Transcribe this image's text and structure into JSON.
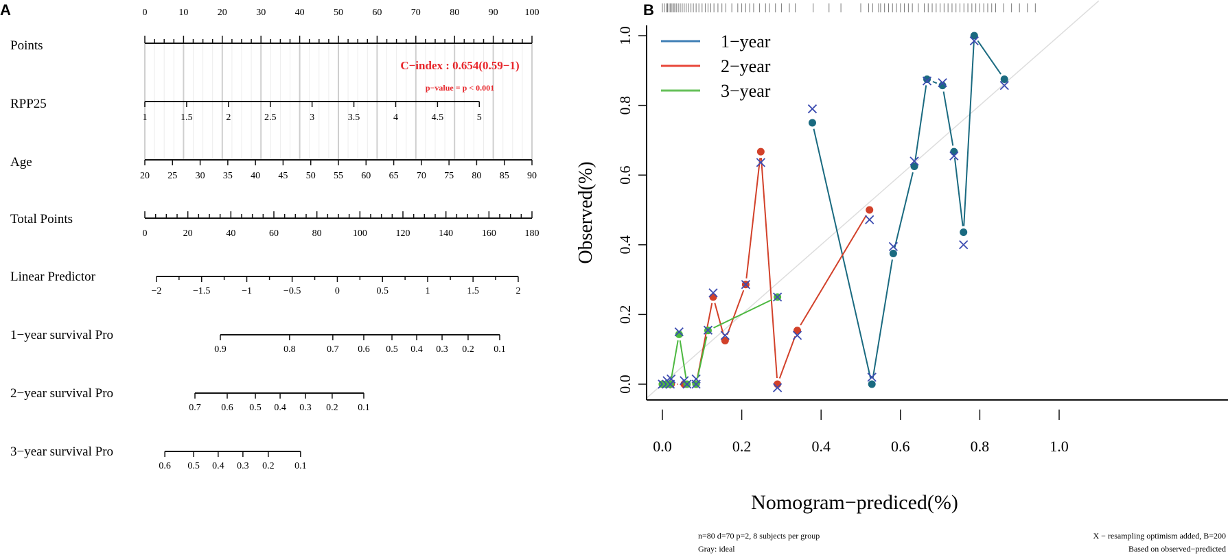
{
  "panels": {
    "a": "A",
    "b": "B"
  },
  "chart_data": [
    {
      "type": "nomogram",
      "annotation": {
        "c_index": "C−index : 0.654(0.59−1)",
        "p_value": "p−value = p < 0.001"
      },
      "colors": {
        "annotation": "#e8262b"
      },
      "points_axis": {
        "label": "Points",
        "min": 0,
        "max": 100,
        "labels": [
          "0",
          "10",
          "20",
          "30",
          "40",
          "50",
          "60",
          "70",
          "80",
          "90",
          "100"
        ]
      },
      "variables": [
        {
          "label": "RPP25",
          "ticks": [
            {
              "t": "1",
              "pts": 0
            },
            {
              "t": "1.5",
              "pts": 10.8
            },
            {
              "t": "2",
              "pts": 21.6
            },
            {
              "t": "2.5",
              "pts": 32.4
            },
            {
              "t": "3",
              "pts": 43.2
            },
            {
              "t": "3.5",
              "pts": 54
            },
            {
              "t": "4",
              "pts": 64.8
            },
            {
              "t": "4.5",
              "pts": 75.6
            },
            {
              "t": "5",
              "pts": 86.4
            }
          ]
        },
        {
          "label": "Age",
          "ticks": [
            {
              "t": "20",
              "pts": 0
            },
            {
              "t": "25",
              "pts": 7.14
            },
            {
              "t": "30",
              "pts": 14.29
            },
            {
              "t": "35",
              "pts": 21.43
            },
            {
              "t": "40",
              "pts": 28.57
            },
            {
              "t": "45",
              "pts": 35.71
            },
            {
              "t": "50",
              "pts": 42.86
            },
            {
              "t": "55",
              "pts": 50
            },
            {
              "t": "60",
              "pts": 57.14
            },
            {
              "t": "65",
              "pts": 64.29
            },
            {
              "t": "70",
              "pts": 71.43
            },
            {
              "t": "75",
              "pts": 78.57
            },
            {
              "t": "80",
              "pts": 85.71
            },
            {
              "t": "85",
              "pts": 92.86
            },
            {
              "t": "90",
              "pts": 100
            }
          ]
        }
      ],
      "total_points": {
        "label": "Total Points",
        "min": 0,
        "max": 180,
        "labels": [
          "0",
          "20",
          "40",
          "60",
          "80",
          "100",
          "120",
          "140",
          "160",
          "180"
        ]
      },
      "outcome_scales": [
        {
          "label": "Linear Predictor",
          "ticks": [
            {
              "t": "−2",
              "tp": 5.4
            },
            {
              "t": "−1.5",
              "tp": 26.4
            },
            {
              "t": "−1",
              "tp": 47.4
            },
            {
              "t": "−0.5",
              "tp": 68.5
            },
            {
              "t": "0",
              "tp": 89.5
            },
            {
              "t": "0.5",
              "tp": 110.5
            },
            {
              "t": "1",
              "tp": 131.5
            },
            {
              "t": "1.5",
              "tp": 152.6
            },
            {
              "t": "2",
              "tp": 173.6
            }
          ]
        },
        {
          "label": "1−year survival Pro",
          "ticks": [
            {
              "t": "0.9",
              "tp": 35.1
            },
            {
              "t": "0.8",
              "tp": 67.3
            },
            {
              "t": "0.7",
              "tp": 87.4
            },
            {
              "t": "0.6",
              "tp": 101.8
            },
            {
              "t": "0.5",
              "tp": 114.9
            },
            {
              "t": "0.4",
              "tp": 126.4
            },
            {
              "t": "0.3",
              "tp": 138.2
            },
            {
              "t": "0.2",
              "tp": 150.3
            },
            {
              "t": "0.1",
              "tp": 165.0
            }
          ]
        },
        {
          "label": "2−year survival Pro",
          "ticks": [
            {
              "t": "0.7",
              "tp": 23.3
            },
            {
              "t": "0.6",
              "tp": 38.3
            },
            {
              "t": "0.5",
              "tp": 51.4
            },
            {
              "t": "0.4",
              "tp": 62.9
            },
            {
              "t": "0.3",
              "tp": 74.7
            },
            {
              "t": "0.2",
              "tp": 87.1
            },
            {
              "t": "0.1",
              "tp": 101.8
            }
          ]
        },
        {
          "label": "3−year survival Pro",
          "ticks": [
            {
              "t": "0.6",
              "tp": 9.3
            },
            {
              "t": "0.5",
              "tp": 22.7
            },
            {
              "t": "0.4",
              "tp": 34.1
            },
            {
              "t": "0.3",
              "tp": 45.6
            },
            {
              "t": "0.2",
              "tp": 57.4
            },
            {
              "t": "0.1",
              "tp": 72.4
            }
          ]
        }
      ]
    },
    {
      "type": "line",
      "xlabel": "Nomogram−prediced(%)",
      "ylabel": "Observed(%)",
      "xlim": [
        0,
        1
      ],
      "ylim": [
        0,
        1
      ],
      "xticks": [
        "0.0",
        "0.2",
        "0.4",
        "0.6",
        "0.8",
        "1.0"
      ],
      "yticks": [
        "0.0",
        "0.2",
        "0.4",
        "0.6",
        "0.8",
        "1.0"
      ],
      "legend_position": "top-left",
      "footnotes": {
        "left1": "n=80 d=70 p=2, 8 subjects per group",
        "left2": "Gray: ideal",
        "right1": "X − resampling optimism added, B=200",
        "right2": "Based on observed−predicted"
      },
      "colors": {
        "ideal": "#dddddd",
        "corrected_marker": "#3b4bb0",
        "rug": "#777777"
      },
      "series": [
        {
          "name": "1−year",
          "legend_color": "#3f7fb5",
          "color": "#1a6a80",
          "points": [
            [
              0.378,
              0.75,
              0.79
            ],
            [
              0.528,
              0.0,
              0.02
            ],
            [
              0.582,
              0.375,
              0.395
            ],
            [
              0.635,
              0.625,
              0.64
            ],
            [
              0.667,
              0.875,
              0.87
            ],
            [
              0.706,
              0.857,
              0.865
            ],
            [
              0.735,
              0.667,
              0.655
            ],
            [
              0.759,
              0.436,
              0.4
            ],
            [
              0.786,
              1.0,
              0.985
            ],
            [
              0.862,
              0.875,
              0.857
            ]
          ]
        },
        {
          "name": "2−year",
          "legend_color": "#e8473a",
          "color": "#d2412a",
          "points": [
            [
              0.0,
              0.0,
              0.0
            ],
            [
              0.012,
              0.0,
              0.01
            ],
            [
              0.022,
              0.0,
              0.015
            ],
            [
              0.055,
              0.0,
              0.01
            ],
            [
              0.085,
              0.0,
              0.015
            ],
            [
              0.128,
              0.25,
              0.262
            ],
            [
              0.158,
              0.125,
              0.14
            ],
            [
              0.21,
              0.286,
              0.286
            ],
            [
              0.248,
              0.667,
              0.636
            ],
            [
              0.29,
              0.0,
              -0.01
            ],
            [
              0.34,
              0.154,
              0.14
            ],
            [
              0.522,
              0.5,
              0.472
            ]
          ]
        },
        {
          "name": "3−year",
          "legend_color": "#66c05a",
          "color": "#4cb840",
          "points": [
            [
              0.0,
              0.0,
              0.0
            ],
            [
              0.01,
              0.0,
              0.0
            ],
            [
              0.02,
              0.0,
              0.0
            ],
            [
              0.042,
              0.143,
              0.15
            ],
            [
              0.062,
              0.0,
              0.0
            ],
            [
              0.085,
              0.0,
              0.0
            ],
            [
              0.115,
              0.154,
              0.155
            ],
            [
              0.29,
              0.25,
              0.25
            ]
          ]
        }
      ],
      "rug": [
        0.0,
        0.005,
        0.01,
        0.013,
        0.017,
        0.02,
        0.024,
        0.028,
        0.031,
        0.035,
        0.04,
        0.045,
        0.05,
        0.055,
        0.06,
        0.066,
        0.072,
        0.078,
        0.085,
        0.092,
        0.1,
        0.108,
        0.115,
        0.122,
        0.13,
        0.14,
        0.15,
        0.16,
        0.175,
        0.19,
        0.2,
        0.21,
        0.22,
        0.23,
        0.245,
        0.26,
        0.27,
        0.285,
        0.3,
        0.32,
        0.335,
        0.38,
        0.42,
        0.45,
        0.5,
        0.52,
        0.53,
        0.545,
        0.55,
        0.56,
        0.57,
        0.58,
        0.59,
        0.6,
        0.61,
        0.62,
        0.63,
        0.645,
        0.66,
        0.67,
        0.68,
        0.69,
        0.7,
        0.71,
        0.72,
        0.73,
        0.74,
        0.75,
        0.76,
        0.77,
        0.78,
        0.79,
        0.8,
        0.81,
        0.82,
        0.83,
        0.84,
        0.86,
        0.88,
        0.9,
        0.92,
        0.94
      ]
    }
  ]
}
